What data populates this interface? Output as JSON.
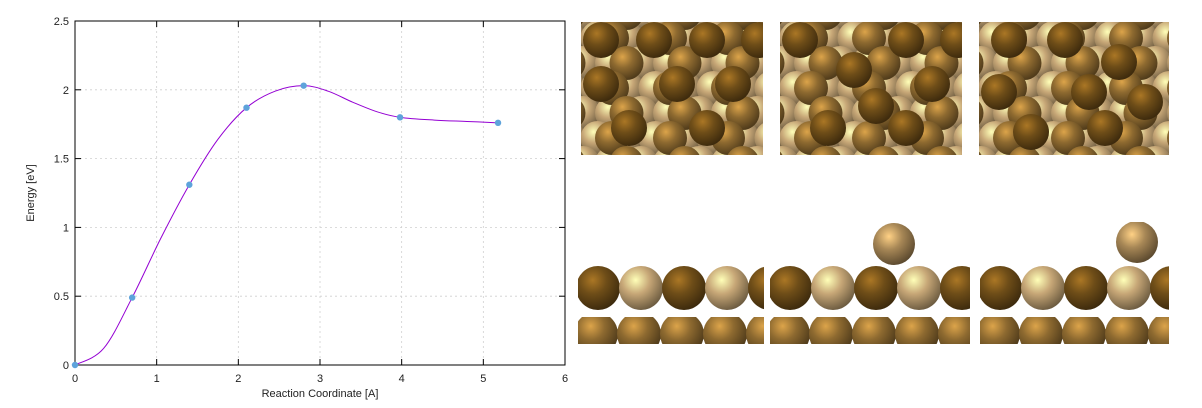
{
  "chart_data": {
    "type": "line",
    "xlabel": "Reaction Coordinate [A]",
    "ylabel": "Energy [eV]",
    "xlim": [
      0,
      6
    ],
    "ylim": [
      0,
      2.5
    ],
    "xticks": [
      "0",
      "1",
      "2",
      "3",
      "4",
      "5",
      "6"
    ],
    "yticks": [
      "0",
      "0.5",
      "1",
      "1.5",
      "2",
      "2.5"
    ],
    "grid": true,
    "series": [
      {
        "x": [
          0,
          0.7,
          1.4,
          2.1,
          2.8,
          3.98,
          5.18
        ],
        "values": [
          0,
          0.49,
          1.31,
          1.87,
          2.03,
          1.8,
          1.76
        ],
        "color": "#9400d3",
        "marker_color": "#5ea3db"
      }
    ],
    "curve": {
      "x": [
        0,
        0.35,
        0.7,
        1.05,
        1.4,
        1.75,
        2.1,
        2.45,
        2.8,
        3.1,
        3.4,
        3.7,
        3.98,
        4.4,
        4.8,
        5.18
      ],
      "y": [
        0,
        0.12,
        0.49,
        0.92,
        1.31,
        1.64,
        1.87,
        1.99,
        2.03,
        1.99,
        1.91,
        1.84,
        1.8,
        1.78,
        1.77,
        1.76
      ]
    }
  },
  "renders": {
    "background": "#ffffff",
    "atom_colors": {
      "dark": "#6e4d18",
      "mid": "#8e6a30",
      "light": "#c7a777",
      "adatom": "#a78756"
    },
    "top_views": [
      "initial-state-top",
      "transition-state-top",
      "final-state-top"
    ],
    "side_views": [
      "initial-state-side",
      "transition-state-side",
      "final-state-side"
    ]
  }
}
